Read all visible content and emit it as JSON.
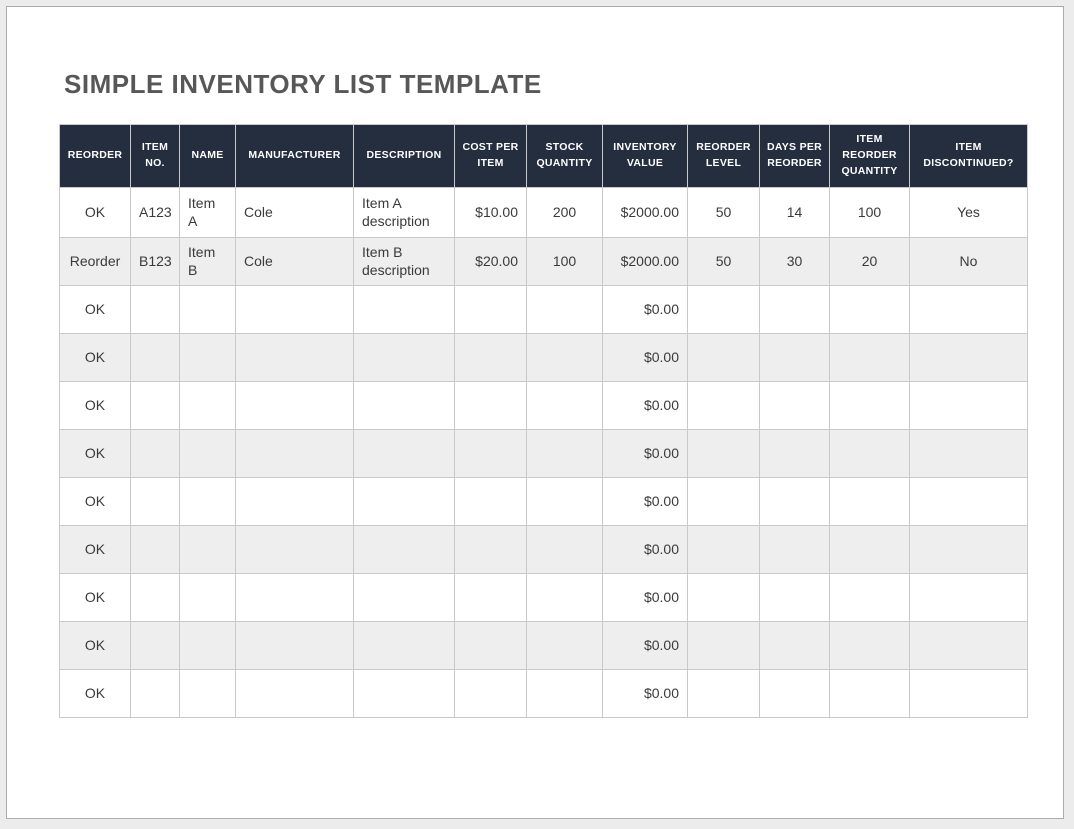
{
  "page": {
    "title": "SIMPLE INVENTORY LIST TEMPLATE"
  },
  "colors": {
    "header_bg": "#252E3F",
    "header_text": "#FFFFFF",
    "row_stripe_bg": "#EEEEEE",
    "grid_border": "#C9C9C9",
    "title_text": "#575757",
    "page_border": "#ABABAB",
    "canvas_bg": "#ECECEC",
    "body_text": "#3A3A3A"
  },
  "table": {
    "columns": [
      {
        "key": "reorder",
        "label": "REORDER",
        "align": "center",
        "width": 71
      },
      {
        "key": "item-no",
        "label": "ITEM NO.",
        "align": "center",
        "width": 49
      },
      {
        "key": "name",
        "label": "NAME",
        "align": "left",
        "width": 56
      },
      {
        "key": "manufacturer",
        "label": "MANUFACTURER",
        "align": "left",
        "width": 118
      },
      {
        "key": "description",
        "label": "DESCRIPTION",
        "align": "left",
        "width": 101
      },
      {
        "key": "cost-per-item",
        "label": "COST PER ITEM",
        "align": "right",
        "width": 72
      },
      {
        "key": "stock-quantity",
        "label": "STOCK QUANTITY",
        "align": "center",
        "width": 76
      },
      {
        "key": "inventory-value",
        "label": "INVENTORY VALUE",
        "align": "right",
        "width": 85
      },
      {
        "key": "reorder-level",
        "label": "REORDER LEVEL",
        "align": "center",
        "width": 72
      },
      {
        "key": "days-per-reorder",
        "label": "DAYS PER REORDER",
        "align": "center",
        "width": 70
      },
      {
        "key": "item-reorder-quantity",
        "label": "ITEM REORDER QUANTITY",
        "align": "center",
        "width": 80
      },
      {
        "key": "item-discontinued",
        "label": "ITEM DISCONTINUED?",
        "align": "center",
        "width": 118
      }
    ],
    "rows": [
      {
        "cells": [
          "OK",
          "A123",
          "Item\nA",
          "Cole",
          "Item A description",
          "$10.00",
          "200",
          "$2000.00",
          "50",
          "14",
          "100",
          "Yes"
        ]
      },
      {
        "cells": [
          "Reorder",
          "B123",
          "Item B",
          "Cole",
          "Item B description",
          "$20.00",
          "100",
          "$2000.00",
          "50",
          "30",
          "20",
          "No"
        ]
      },
      {
        "cells": [
          "OK",
          "",
          "",
          "",
          "",
          "",
          "",
          "$0.00",
          "",
          "",
          "",
          ""
        ]
      },
      {
        "cells": [
          "OK",
          "",
          "",
          "",
          "",
          "",
          "",
          "$0.00",
          "",
          "",
          "",
          ""
        ]
      },
      {
        "cells": [
          "OK",
          "",
          "",
          "",
          "",
          "",
          "",
          "$0.00",
          "",
          "",
          "",
          ""
        ]
      },
      {
        "cells": [
          "OK",
          "",
          "",
          "",
          "",
          "",
          "",
          "$0.00",
          "",
          "",
          "",
          ""
        ]
      },
      {
        "cells": [
          "OK",
          "",
          "",
          "",
          "",
          "",
          "",
          "$0.00",
          "",
          "",
          "",
          ""
        ]
      },
      {
        "cells": [
          "OK",
          "",
          "",
          "",
          "",
          "",
          "",
          "$0.00",
          "",
          "",
          "",
          ""
        ]
      },
      {
        "cells": [
          "OK",
          "",
          "",
          "",
          "",
          "",
          "",
          "$0.00",
          "",
          "",
          "",
          ""
        ]
      },
      {
        "cells": [
          "OK",
          "",
          "",
          "",
          "",
          "",
          "",
          "$0.00",
          "",
          "",
          "",
          ""
        ]
      },
      {
        "cells": [
          "OK",
          "",
          "",
          "",
          "",
          "",
          "",
          "$0.00",
          "",
          "",
          "",
          ""
        ]
      }
    ]
  }
}
